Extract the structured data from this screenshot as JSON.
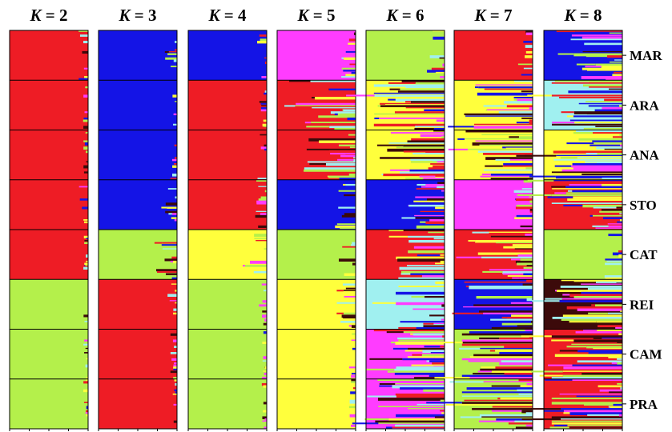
{
  "chart_data": {
    "type": "bar",
    "subtype": "stacked-horizontal-structure-plot",
    "title": "",
    "panel_title_prefix": "K",
    "panel_title_sep": " = ",
    "populations": [
      "MAR",
      "ARA",
      "ANA",
      "STO",
      "CAT",
      "REI",
      "CAM",
      "PRA"
    ],
    "colors": {
      "red": "#ee1c25",
      "blue": "#1414e6",
      "green": "#b4f04b",
      "magenta": "#ff3cff",
      "yellow": "#ffff3c",
      "cyan": "#a0f0f0",
      "dark": "#3c0a0a"
    },
    "panels": [
      {
        "k": "2",
        "assignment": [
          "red",
          "red",
          "red",
          "red",
          "red",
          "green",
          "green",
          "green"
        ],
        "admixture": [
          0.05,
          0.02,
          0.02,
          0.06,
          0.02,
          0.05,
          0.02,
          0.02
        ]
      },
      {
        "k": "3",
        "assignment": [
          "blue",
          "blue",
          "blue",
          "blue",
          "green",
          "red",
          "red",
          "red"
        ],
        "admixture": [
          0.06,
          0.02,
          0.03,
          0.08,
          0.12,
          0.05,
          0.03,
          0.03
        ]
      },
      {
        "k": "4",
        "assignment": [
          "blue",
          "red",
          "red",
          "red",
          "yellow",
          "green",
          "green",
          "green"
        ],
        "admixture": [
          0.06,
          0.04,
          0.05,
          0.06,
          0.12,
          0.04,
          0.02,
          0.02
        ]
      },
      {
        "k": "5",
        "assignment": [
          "magenta",
          "red",
          "red",
          "blue",
          "green",
          "yellow",
          "yellow",
          "yellow"
        ],
        "admixture": [
          0.08,
          0.35,
          0.3,
          0.15,
          0.12,
          0.1,
          0.03,
          0.03
        ]
      },
      {
        "k": "6",
        "assignment": [
          "green",
          "yellow",
          "yellow",
          "blue",
          "red",
          "cyan",
          "magenta",
          "magenta"
        ],
        "admixture": [
          0.1,
          0.45,
          0.4,
          0.2,
          0.3,
          0.3,
          0.45,
          0.4
        ]
      },
      {
        "k": "7",
        "assignment": [
          "red",
          "yellow",
          "yellow",
          "magenta",
          "red",
          "blue",
          "green",
          "green"
        ],
        "admixture": [
          0.08,
          0.4,
          0.4,
          0.1,
          0.35,
          0.4,
          0.45,
          0.5
        ]
      },
      {
        "k": "8",
        "assignment": [
          "blue",
          "cyan",
          "yellow",
          "red",
          "green",
          "dark",
          "red",
          "red"
        ],
        "admixture": [
          0.3,
          0.45,
          0.4,
          0.45,
          0.1,
          0.4,
          0.45,
          0.5
        ]
      }
    ]
  }
}
